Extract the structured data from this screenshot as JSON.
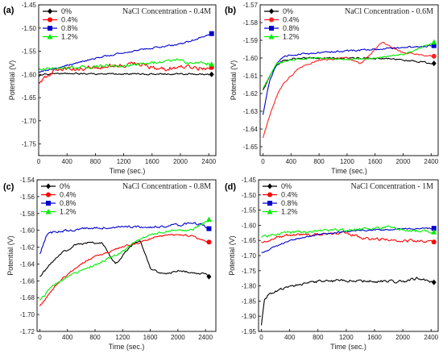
{
  "chart_data": [
    {
      "type": "line",
      "panel_label": "(a)",
      "title": "NaCl Concentration - 0.4M",
      "xlabel": "Time (sec.)",
      "ylabel": "Potential (V)",
      "xlim": [
        0,
        2500
      ],
      "ylim": [
        -1.775,
        -1.45
      ],
      "xticks": [
        0,
        400,
        800,
        1200,
        1600,
        2000,
        2400
      ],
      "yticks": [
        -1.45,
        -1.5,
        -1.55,
        -1.6,
        -1.65,
        -1.7,
        -1.75
      ],
      "ytick_labels": [
        "-1.45",
        "-1.50",
        "-1.55",
        "-1.60",
        "-1.65",
        "-1.70",
        "-1.75"
      ],
      "legend_position": "top-left",
      "series": [
        {
          "name": "0%",
          "color": "#000000",
          "marker": "diamond",
          "noise": 0.0015,
          "x": [
            0,
            80,
            200,
            400,
            800,
            1200,
            1600,
            2000,
            2440
          ],
          "y": [
            -1.605,
            -1.6,
            -1.597,
            -1.598,
            -1.599,
            -1.599,
            -1.599,
            -1.599,
            -1.6
          ]
        },
        {
          "name": "0.4%",
          "color": "#ff0000",
          "marker": "circle",
          "noise": 0.004,
          "x": [
            0,
            200,
            400,
            800,
            1200,
            1400,
            1600,
            1800,
            2000,
            2200,
            2440
          ],
          "y": [
            -1.618,
            -1.595,
            -1.588,
            -1.585,
            -1.58,
            -1.574,
            -1.585,
            -1.587,
            -1.583,
            -1.587,
            -1.585
          ]
        },
        {
          "name": "0.8%",
          "color": "#0000cc",
          "marker": "square",
          "noise": 0.0015,
          "x": [
            0,
            200,
            400,
            800,
            1200,
            1600,
            2000,
            2200,
            2440
          ],
          "y": [
            -1.595,
            -1.588,
            -1.58,
            -1.565,
            -1.553,
            -1.543,
            -1.535,
            -1.525,
            -1.512
          ]
        },
        {
          "name": "1.2%",
          "color": "#00ee00",
          "marker": "triangle",
          "noise": 0.003,
          "x": [
            0,
            200,
            400,
            800,
            1200,
            1600,
            1900,
            2200,
            2440
          ],
          "y": [
            -1.59,
            -1.588,
            -1.585,
            -1.583,
            -1.58,
            -1.575,
            -1.568,
            -1.577,
            -1.578
          ]
        }
      ]
    },
    {
      "type": "line",
      "panel_label": "(b)",
      "title": "NaCl Concentration - 0.6M",
      "xlabel": "Time (sec.)",
      "ylabel": "Potential (V)",
      "xlim": [
        -40,
        2500
      ],
      "ylim": [
        -1.655,
        -1.57
      ],
      "xticks": [
        0,
        400,
        800,
        1200,
        1600,
        2000,
        2400
      ],
      "yticks": [
        -1.57,
        -1.58,
        -1.59,
        -1.6,
        -1.61,
        -1.62,
        -1.63,
        -1.64,
        -1.65
      ],
      "ytick_labels": [
        "-1.57",
        "-1.58",
        "-1.59",
        "-1.60",
        "-1.61",
        "-1.62",
        "-1.63",
        "-1.64",
        "-1.65"
      ],
      "legend_position": "top-left",
      "series": [
        {
          "name": "0%",
          "color": "#000000",
          "marker": "diamond",
          "noise": 0.0004,
          "x": [
            0,
            100,
            200,
            300,
            500,
            800,
            1200,
            1600,
            2000,
            2440
          ],
          "y": [
            -1.618,
            -1.61,
            -1.604,
            -1.601,
            -1.6,
            -1.6,
            -1.6,
            -1.6,
            -1.601,
            -1.603
          ]
        },
        {
          "name": "0.4%",
          "color": "#ff2222",
          "marker": "circle",
          "noise": 0.0004,
          "x": [
            0,
            100,
            200,
            300,
            500,
            800,
            1200,
            1400,
            1700,
            2000,
            2440
          ],
          "y": [
            -1.645,
            -1.632,
            -1.621,
            -1.614,
            -1.606,
            -1.601,
            -1.6,
            -1.603,
            -1.591,
            -1.597,
            -1.599
          ]
        },
        {
          "name": "0.8%",
          "color": "#0000cc",
          "marker": "square",
          "noise": 0.0004,
          "x": [
            0,
            100,
            200,
            300,
            500,
            800,
            1200,
            1600,
            2000,
            2440
          ],
          "y": [
            -1.632,
            -1.612,
            -1.603,
            -1.599,
            -1.598,
            -1.597,
            -1.596,
            -1.595,
            -1.594,
            -1.593
          ]
        },
        {
          "name": "1.2%",
          "color": "#00ee00",
          "marker": "triangle",
          "noise": 0.0004,
          "x": [
            0,
            100,
            200,
            400,
            800,
            1200,
            1600,
            2000,
            2440
          ],
          "y": [
            -1.617,
            -1.61,
            -1.603,
            -1.601,
            -1.6,
            -1.601,
            -1.6,
            -1.598,
            -1.591
          ]
        }
      ]
    },
    {
      "type": "line",
      "panel_label": "(c)",
      "title": "NaCl Concentration - 0.8M",
      "xlabel": "Time (sec.)",
      "ylabel": "Potential (V)",
      "xlim": [
        -40,
        2550
      ],
      "ylim": [
        -1.72,
        -1.54
      ],
      "xticks": [
        0,
        400,
        800,
        1200,
        1600,
        2000,
        2400
      ],
      "yticks": [
        -1.54,
        -1.56,
        -1.58,
        -1.6,
        -1.62,
        -1.64,
        -1.66,
        -1.68,
        -1.7,
        -1.72
      ],
      "ytick_labels": [
        "-1.54",
        "-1.56",
        "-1.58",
        "-1.60",
        "-1.62",
        "-1.64",
        "-1.66",
        "-1.68",
        "-1.70",
        "-1.72"
      ],
      "legend_position": "top-left",
      "series": [
        {
          "name": "0%",
          "color": "#000000",
          "marker": "diamond",
          "noise": 0.001,
          "x": [
            0,
            150,
            300,
            500,
            700,
            900,
            1100,
            1300,
            1450,
            1600,
            1800,
            2000,
            2200,
            2400,
            2450
          ],
          "y": [
            -1.655,
            -1.64,
            -1.628,
            -1.618,
            -1.615,
            -1.615,
            -1.64,
            -1.62,
            -1.612,
            -1.645,
            -1.652,
            -1.648,
            -1.65,
            -1.652,
            -1.655
          ]
        },
        {
          "name": "0.4%",
          "color": "#ff0000",
          "marker": "circle",
          "noise": 0.0008,
          "x": [
            0,
            200,
            400,
            600,
            800,
            1000,
            1200,
            1400,
            1700,
            2000,
            2200,
            2450
          ],
          "y": [
            -1.69,
            -1.668,
            -1.652,
            -1.64,
            -1.631,
            -1.626,
            -1.619,
            -1.616,
            -1.607,
            -1.605,
            -1.607,
            -1.614
          ]
        },
        {
          "name": "0.8%",
          "color": "#0000cc",
          "marker": "square",
          "noise": 0.0012,
          "x": [
            0,
            100,
            200,
            400,
            800,
            1200,
            1600,
            2000,
            2200,
            2350,
            2450
          ],
          "y": [
            -1.628,
            -1.605,
            -1.602,
            -1.6,
            -1.597,
            -1.596,
            -1.596,
            -1.594,
            -1.591,
            -1.593,
            -1.598
          ]
        },
        {
          "name": "1.2%",
          "color": "#00ee00",
          "marker": "triangle",
          "noise": 0.0012,
          "x": [
            0,
            200,
            400,
            600,
            800,
            1000,
            1200,
            1400,
            1600,
            1900,
            2200,
            2450
          ],
          "y": [
            -1.683,
            -1.665,
            -1.655,
            -1.648,
            -1.641,
            -1.633,
            -1.625,
            -1.613,
            -1.605,
            -1.6,
            -1.6,
            -1.587
          ]
        }
      ]
    },
    {
      "type": "line",
      "panel_label": "(d)",
      "title": "NaCl Concentration - 1M",
      "xlabel": "Time (sec.)",
      "ylabel": "Potential (V)",
      "xlim": [
        -40,
        2500
      ],
      "ylim": [
        -1.95,
        -1.45
      ],
      "xticks": [
        0,
        400,
        800,
        1200,
        1600,
        2000,
        2400
      ],
      "yticks": [
        -1.45,
        -1.5,
        -1.55,
        -1.6,
        -1.65,
        -1.7,
        -1.75,
        -1.8,
        -1.85,
        -1.9,
        -1.95
      ],
      "ytick_labels": [
        "-1.45",
        "-1.50",
        "-1.55",
        "-1.60",
        "-1.65",
        "-1.70",
        "-1.75",
        "-1.80",
        "-1.85",
        "-1.90",
        "-1.95"
      ],
      "legend_position": "top-left",
      "series": [
        {
          "name": "0%",
          "color": "#000000",
          "marker": "diamond",
          "noise": 0.004,
          "x": [
            0,
            40,
            100,
            200,
            400,
            800,
            1200,
            1600,
            2000,
            2200,
            2440
          ],
          "y": [
            -1.93,
            -1.85,
            -1.83,
            -1.82,
            -1.8,
            -1.785,
            -1.783,
            -1.785,
            -1.785,
            -1.775,
            -1.788
          ]
        },
        {
          "name": "0.4%",
          "color": "#ff0000",
          "marker": "circle",
          "noise": 0.004,
          "x": [
            0,
            200,
            400,
            800,
            1200,
            1400,
            1600,
            2000,
            2200,
            2440
          ],
          "y": [
            -1.655,
            -1.64,
            -1.632,
            -1.628,
            -1.625,
            -1.64,
            -1.645,
            -1.65,
            -1.652,
            -1.655
          ]
        },
        {
          "name": "0.8%",
          "color": "#0000cc",
          "marker": "square",
          "noise": 0.002,
          "x": [
            0,
            200,
            400,
            800,
            1200,
            1600,
            2000,
            2440
          ],
          "y": [
            -1.69,
            -1.67,
            -1.65,
            -1.63,
            -1.62,
            -1.615,
            -1.612,
            -1.61
          ]
        },
        {
          "name": "1.2%",
          "color": "#00ee00",
          "marker": "triangle",
          "noise": 0.004,
          "x": [
            0,
            200,
            400,
            800,
            1200,
            1600,
            1800,
            2000,
            2440
          ],
          "y": [
            -1.64,
            -1.63,
            -1.625,
            -1.62,
            -1.615,
            -1.612,
            -1.605,
            -1.615,
            -1.622
          ]
        }
      ]
    }
  ]
}
